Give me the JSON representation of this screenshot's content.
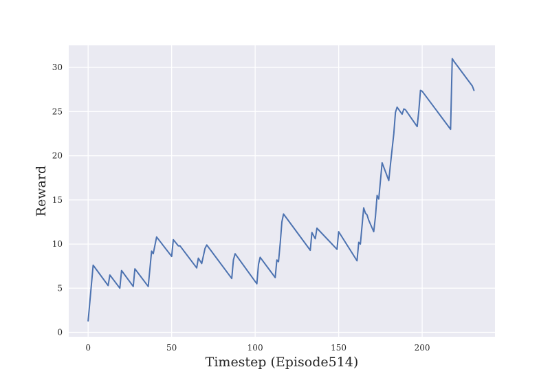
{
  "chart_data": {
    "type": "line",
    "xlabel": "Timestep (Episode514)",
    "ylabel": "Reward",
    "xlim": [
      -11.6,
      243.6
    ],
    "ylim": [
      -0.5,
      32.5
    ],
    "xticks": [
      0,
      50,
      100,
      150,
      200
    ],
    "yticks": [
      0,
      5,
      10,
      15,
      20,
      25,
      30
    ],
    "grid": true,
    "background": "#EAEAF2",
    "grid_color": "#FFFFFF",
    "line_color": "#4C72B0",
    "series": [
      {
        "x": [
          0,
          3,
          12,
          13,
          19,
          20,
          27,
          28,
          36,
          38,
          39,
          41,
          50,
          51,
          54,
          55,
          65,
          66,
          68,
          70,
          71,
          86,
          87,
          88,
          101,
          102,
          103,
          112,
          113,
          114,
          115,
          116,
          117,
          133,
          134,
          136,
          137,
          149,
          150,
          161,
          162,
          163,
          165,
          166,
          167,
          168,
          171,
          172,
          173,
          174,
          176,
          180,
          181,
          183,
          184,
          185,
          188,
          189,
          190,
          197,
          198,
          199,
          200,
          217,
          218,
          219,
          230,
          231
        ],
        "y": [
          1.3,
          7.6,
          5.3,
          6.5,
          5.0,
          7.0,
          5.2,
          7.2,
          5.2,
          9.2,
          8.9,
          10.8,
          8.6,
          10.5,
          9.8,
          9.8,
          7.3,
          8.4,
          7.8,
          9.5,
          9.9,
          6.1,
          8.2,
          8.9,
          5.5,
          7.7,
          8.5,
          6.2,
          8.2,
          8.0,
          10.1,
          12.5,
          13.4,
          9.3,
          11.3,
          10.6,
          11.8,
          9.4,
          11.4,
          8.1,
          10.2,
          10.0,
          14.1,
          13.5,
          13.3,
          12.7,
          11.4,
          13.1,
          15.5,
          15.1,
          19.2,
          17.2,
          19.0,
          22.5,
          24.9,
          25.5,
          24.7,
          25.3,
          25.2,
          23.3,
          25.1,
          27.4,
          27.3,
          23.0,
          31.0,
          30.7,
          27.9,
          27.4
        ]
      }
    ]
  }
}
